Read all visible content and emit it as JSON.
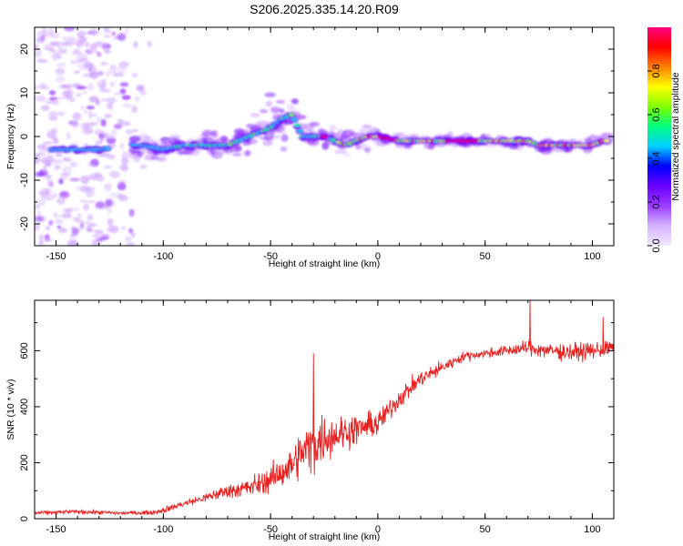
{
  "chart_data": [
    {
      "type": "heatmap",
      "title": "S206.2025.335.14.20.R09",
      "xlabel": "Height of straight line (km)",
      "ylabel": "Frequency (Hz)",
      "xlim": [
        -160,
        110
      ],
      "ylim": [
        -25,
        25
      ],
      "xticks": [
        -150,
        -100,
        -50,
        0,
        50,
        100
      ],
      "yticks": [
        -20,
        -10,
        0,
        10,
        20
      ],
      "colorbar": {
        "label": "Normalized spectral amplitude",
        "range": [
          0.0,
          1.0
        ],
        "ticks": [
          "0.0",
          "0.2",
          "0.4",
          "0.6",
          "0.8"
        ],
        "colors": [
          "#f0e8ff",
          "#d6b3ff",
          "#9b3dff",
          "#6a00ff",
          "#0000ff",
          "#00d0ff",
          "#00ff80",
          "#80ff00",
          "#ffff00",
          "#ff8000",
          "#ff0000",
          "#ff0080"
        ]
      },
      "ridge": {
        "x": [
          -150,
          -140,
          -135,
          -130,
          -115,
          -110,
          -100,
          -90,
          -80,
          -70,
          -65,
          -60,
          -55,
          -50,
          -45,
          -40,
          -35,
          -30,
          -25,
          -20,
          -15,
          -10,
          -5,
          0,
          10,
          20,
          30,
          40,
          50,
          60,
          65,
          70,
          75,
          80,
          85,
          90,
          95,
          100,
          105
        ],
        "y": [
          -3,
          -3,
          -3,
          -3,
          -2,
          -2,
          -3,
          -2,
          -2,
          -2,
          -1,
          0,
          1,
          2,
          4,
          5,
          0,
          0,
          0,
          -1,
          -2,
          -1,
          0,
          0,
          -1,
          -1,
          -1,
          -1,
          -1,
          -1,
          -1,
          -1,
          -2,
          -2,
          -2,
          -2,
          -2,
          -2,
          -1
        ]
      },
      "scatter_region": {
        "x": [
          -160,
          -105
        ],
        "y": [
          -25,
          25
        ]
      },
      "bulge_peak": {
        "x": -45,
        "y": 10
      }
    },
    {
      "type": "line",
      "xlabel": "Height of straight line (km)",
      "ylabel": "SNR (10 * v/v)",
      "xlim": [
        -160,
        110
      ],
      "ylim": [
        0,
        780
      ],
      "xticks": [
        -150,
        -100,
        -50,
        0,
        50,
        100
      ],
      "yticks": [
        0,
        200,
        400,
        600
      ],
      "series": [
        {
          "name": "SNR",
          "color": "#e8201f",
          "x": [
            -160,
            -140,
            -120,
            -105,
            -100,
            -90,
            -80,
            -70,
            -60,
            -50,
            -40,
            -35,
            -30,
            -25,
            -20,
            -10,
            0,
            10,
            20,
            30,
            40,
            50,
            60,
            70,
            80,
            90,
            100,
            110
          ],
          "y": [
            20,
            25,
            20,
            22,
            30,
            55,
            75,
            100,
            110,
            140,
            190,
            240,
            260,
            290,
            300,
            320,
            340,
            430,
            500,
            540,
            580,
            590,
            600,
            610,
            600,
            595,
            600,
            610
          ],
          "spread": [
            10,
            12,
            10,
            12,
            15,
            20,
            25,
            40,
            55,
            70,
            100,
            130,
            150,
            130,
            110,
            80,
            70,
            55,
            45,
            35,
            25,
            25,
            30,
            40,
            45,
            50,
            45,
            45
          ],
          "spikes": [
            {
              "x": 71,
              "y": 780
            },
            {
              "x": -30,
              "y": 590
            },
            {
              "x": 105,
              "y": 720
            }
          ]
        }
      ]
    }
  ]
}
